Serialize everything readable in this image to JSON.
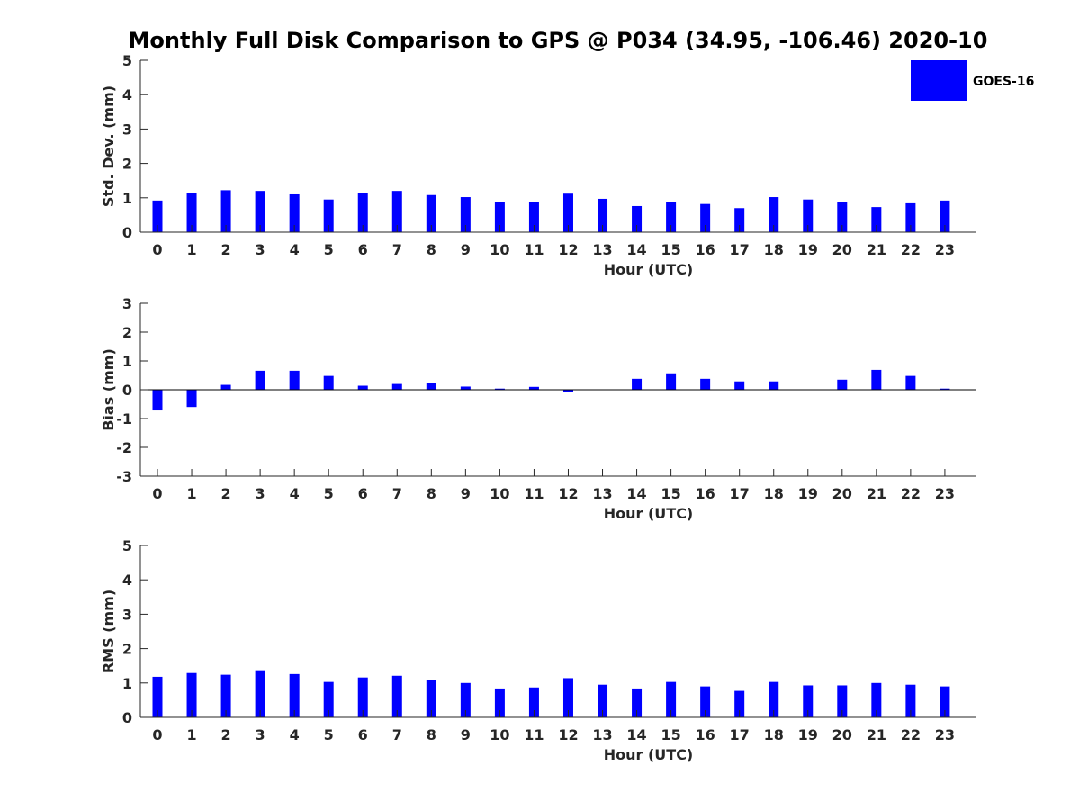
{
  "title": "Monthly Full Disk Comparison to GPS @ P034 (34.95, -106.46) 2020-10",
  "colors": {
    "bar": "#0000ff",
    "axis": "#262626",
    "text": "#000000"
  },
  "legend": {
    "label": "GOES-16",
    "placement": "top-right"
  },
  "chart_data": [
    {
      "type": "bar",
      "title": "Monthly Full Disk Comparison to GPS @ P034 (34.95, -106.46) 2020-10",
      "xlabel": "Hour (UTC)",
      "ylabel": "Std. Dev. (mm)",
      "ylim": [
        0,
        5
      ],
      "yticks": [
        0,
        1,
        2,
        3,
        4,
        5
      ],
      "categories": [
        "0",
        "1",
        "2",
        "3",
        "4",
        "5",
        "6",
        "7",
        "8",
        "9",
        "10",
        "11",
        "12",
        "13",
        "14",
        "15",
        "16",
        "17",
        "18",
        "19",
        "20",
        "21",
        "22",
        "23"
      ],
      "series": [
        {
          "name": "GOES-16",
          "values": [
            0.92,
            1.15,
            1.22,
            1.2,
            1.1,
            0.95,
            1.15,
            1.2,
            1.08,
            1.02,
            0.87,
            0.87,
            1.12,
            0.97,
            0.76,
            0.87,
            0.82,
            0.7,
            1.02,
            0.95,
            0.87,
            0.73,
            0.84,
            0.92
          ]
        }
      ]
    },
    {
      "type": "bar",
      "xlabel": "Hour (UTC)",
      "ylabel": "Bias (mm)",
      "ylim": [
        -3,
        3
      ],
      "yticks": [
        -3,
        -2,
        -1,
        0,
        1,
        2,
        3
      ],
      "categories": [
        "0",
        "1",
        "2",
        "3",
        "4",
        "5",
        "6",
        "7",
        "8",
        "9",
        "10",
        "11",
        "12",
        "13",
        "14",
        "15",
        "16",
        "17",
        "18",
        "19",
        "20",
        "21",
        "22",
        "23"
      ],
      "series": [
        {
          "name": "GOES-16",
          "values": [
            -0.72,
            -0.6,
            0.17,
            0.66,
            0.66,
            0.48,
            0.14,
            0.2,
            0.22,
            0.11,
            0.04,
            0.1,
            -0.07,
            0,
            0.38,
            0.57,
            0.38,
            0.29,
            0.29,
            0,
            0.35,
            0.69,
            0.48,
            0.04
          ]
        }
      ]
    },
    {
      "type": "bar",
      "xlabel": "Hour (UTC)",
      "ylabel": "RMS (mm)",
      "ylim": [
        0,
        5
      ],
      "yticks": [
        0,
        1,
        2,
        3,
        4,
        5
      ],
      "categories": [
        "0",
        "1",
        "2",
        "3",
        "4",
        "5",
        "6",
        "7",
        "8",
        "9",
        "10",
        "11",
        "12",
        "13",
        "14",
        "15",
        "16",
        "17",
        "18",
        "19",
        "20",
        "21",
        "22",
        "23"
      ],
      "series": [
        {
          "name": "GOES-16",
          "values": [
            1.18,
            1.29,
            1.24,
            1.37,
            1.26,
            1.03,
            1.16,
            1.21,
            1.08,
            1.0,
            0.84,
            0.87,
            1.14,
            0.95,
            0.84,
            1.03,
            0.9,
            0.77,
            1.03,
            0.93,
            0.93,
            1.0,
            0.95,
            0.9
          ]
        }
      ]
    }
  ]
}
